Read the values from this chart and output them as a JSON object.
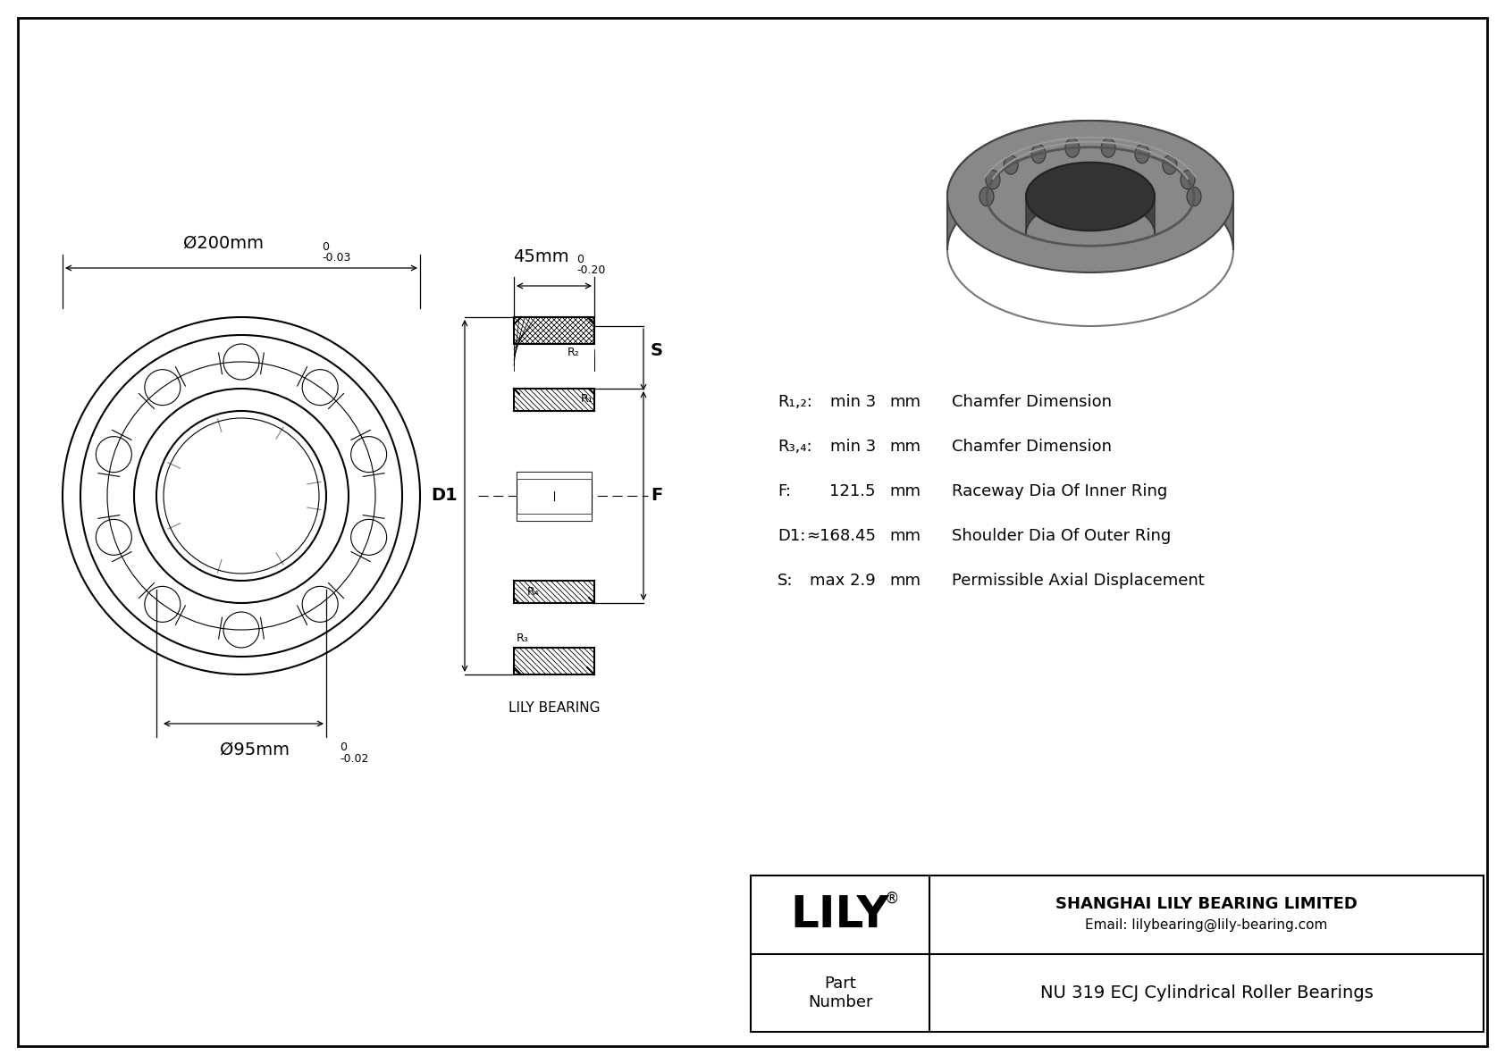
{
  "bg_color": "#ffffff",
  "drawing_color": "#000000",
  "outer_dim_label": "Ø200mm",
  "outer_dim_tol_upper": "0",
  "outer_dim_tol_lower": "-0.03",
  "inner_dim_label": "Ø95mm",
  "inner_dim_tol_upper": "0",
  "inner_dim_tol_lower": "-0.02",
  "width_dim_label": "45mm",
  "width_dim_tol_upper": "0",
  "width_dim_tol_lower": "-0.20",
  "spec_rows": [
    {
      "param": "R1,2:",
      "value": "min 3",
      "unit": "mm",
      "desc": "Chamfer Dimension"
    },
    {
      "param": "R3,4:",
      "value": "min 3",
      "unit": "mm",
      "desc": "Chamfer Dimension"
    },
    {
      "param": "F:",
      "value": "121.5",
      "unit": "mm",
      "desc": "Raceway Dia Of Inner Ring"
    },
    {
      "param": "D1:",
      "value": "≈168.45",
      "unit": "mm",
      "desc": "Shoulder Dia Of Outer Ring"
    },
    {
      "param": "S:",
      "value": "max 2.9",
      "unit": "mm",
      "desc": "Permissible Axial Displacement"
    }
  ],
  "spec_params_special": [
    "R₁,₂:",
    "R₃,₄:",
    "F:",
    "D1:",
    "S:"
  ],
  "lily_bearing_label": "LILY BEARING",
  "company_name": "SHANGHAI LILY BEARING LIMITED",
  "company_email": "Email: lilybearing@lily-bearing.com",
  "part_number_label": "Part\nNumber",
  "part_number": "NU 319 ECJ Cylindrical Roller Bearings",
  "logo_text": "LILY",
  "label_D1": "D1",
  "label_F": "F",
  "label_S": "S",
  "label_R1": "R₁",
  "label_R2": "R₂",
  "label_R3": "R₃",
  "label_R4": "R₄"
}
